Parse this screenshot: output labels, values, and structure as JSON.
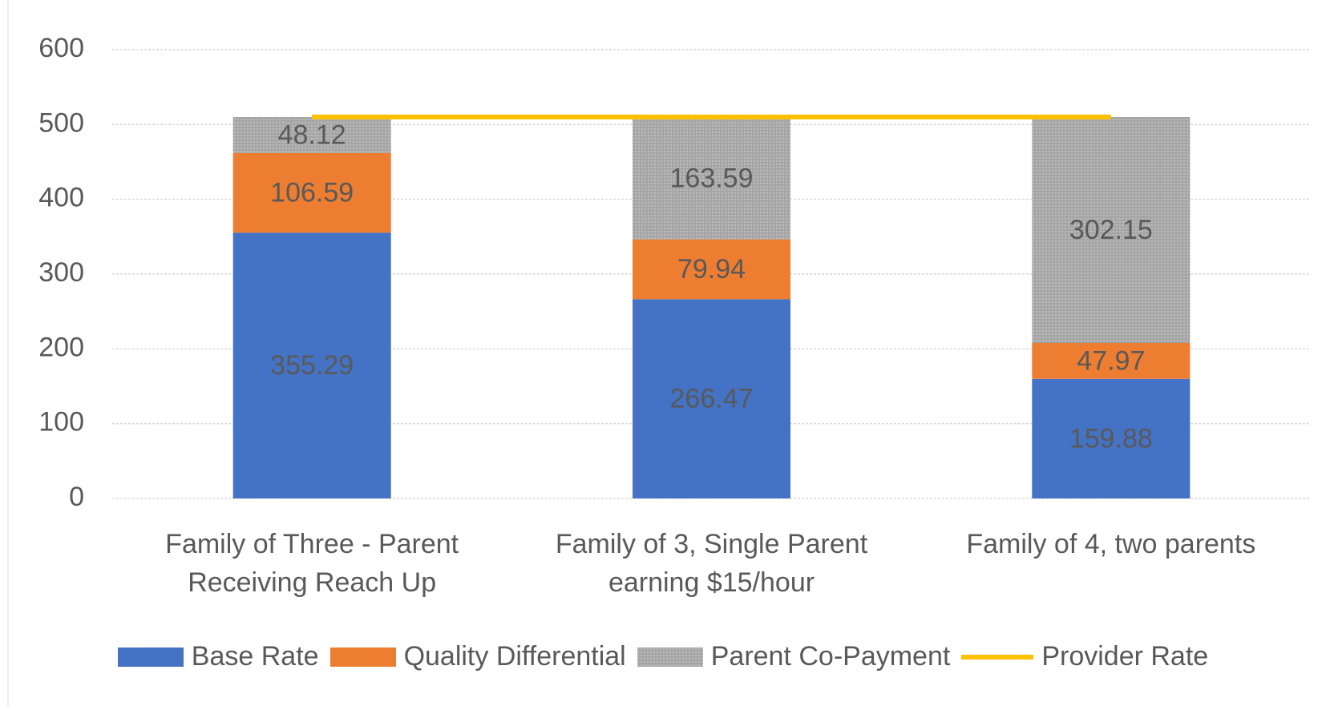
{
  "chart_data": {
    "type": "bar",
    "stacked": true,
    "categories": [
      "Family of Three - Parent Receiving Reach Up",
      "Family of 3, Single Parent earning $15/hour",
      "Family of 4, two parents"
    ],
    "series": [
      {
        "name": "Base Rate",
        "color": "#4472c4",
        "values": [
          355.29,
          266.47,
          159.88
        ]
      },
      {
        "name": "Quality Differential",
        "color": "#ed7d31",
        "values": [
          106.59,
          79.94,
          47.97
        ]
      },
      {
        "name": "Parent Co-Payment",
        "color": "#a5a5a5",
        "values": [
          48.12,
          163.59,
          302.15
        ]
      },
      {
        "name": "Provider Rate",
        "color": "#ffc000",
        "type": "line",
        "values": [
          510,
          510,
          510
        ]
      }
    ],
    "ylim": [
      0,
      600
    ],
    "yticks": [
      0,
      100,
      200,
      300,
      400,
      500,
      600
    ],
    "grid": true,
    "legend": "bottom"
  }
}
